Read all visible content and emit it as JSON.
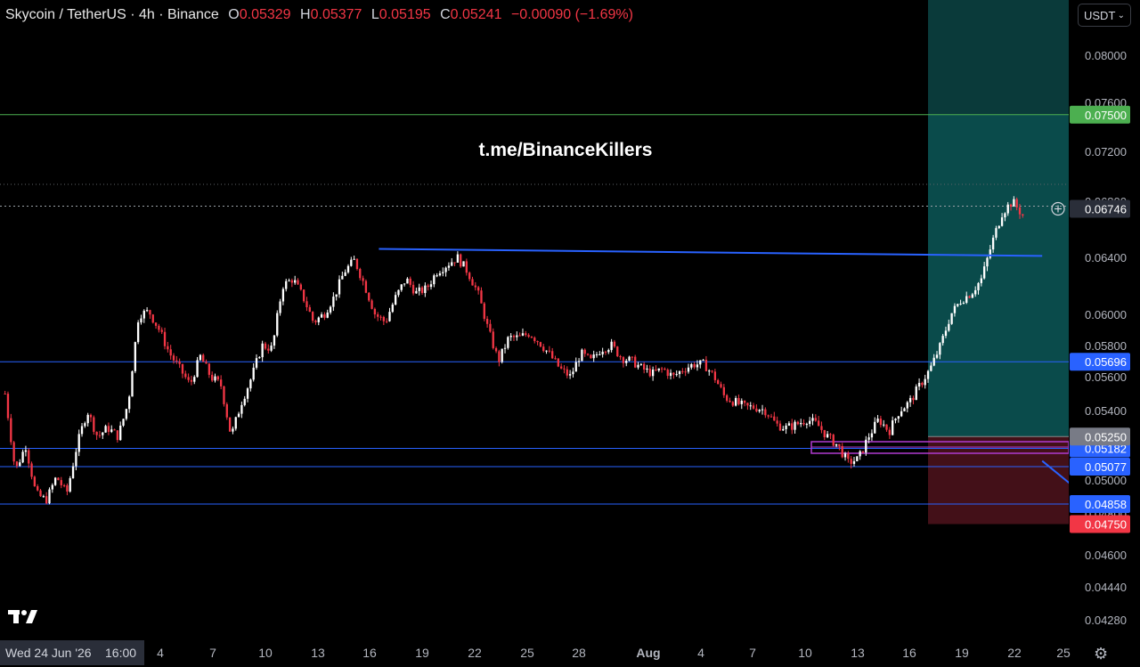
{
  "header": {
    "symbol": "Skycoin / TetherUS · 4h · Binance",
    "open_key": "O",
    "open": "0.05329",
    "high_key": "H",
    "high": "0.05377",
    "low_key": "L",
    "low": "0.05195",
    "close_key": "C",
    "close": "0.05241",
    "change": "−0.00090 (−1.69%)"
  },
  "currency_selector": {
    "value": "USDT"
  },
  "watermark": "t.me/BinanceKillers",
  "colors": {
    "up": "#ffffff",
    "down": "#f23645",
    "level_line": "#2962ff",
    "target_zone": "#0b5a5a",
    "stop_zone": "#5a1520",
    "target_label": "#4caf50",
    "stop_label": "#f23645",
    "blue_label": "#2962ff"
  },
  "chart_data": {
    "type": "candlestick",
    "y_axis": {
      "min": 0.0422,
      "max": 0.082,
      "ticks": [
        "0.08000",
        "0.07600",
        "0.07200",
        "0.06800",
        "0.06400",
        "0.06000",
        "0.05800",
        "0.05600",
        "0.05400",
        "0.05000",
        "0.04800",
        "0.04600",
        "0.04440",
        "0.04280"
      ]
    },
    "x_axis": {
      "ticks": [
        "4",
        "7",
        "10",
        "13",
        "16",
        "19",
        "22",
        "25",
        "28",
        "Aug",
        "4",
        "7",
        "10",
        "13",
        "16",
        "19",
        "22",
        "25"
      ],
      "cursor_label": "Wed 24 Jun '26",
      "cursor_time": "16:00"
    },
    "horizontal_levels": [
      {
        "price": 0.075,
        "label": "0.07500",
        "kind": "target"
      },
      {
        "price": 0.05696,
        "label": "0.05696",
        "kind": "level"
      },
      {
        "price": 0.05182,
        "label": "0.05182",
        "kind": "level"
      },
      {
        "price": 0.05077,
        "label": "0.05077",
        "kind": "level"
      },
      {
        "price": 0.04858,
        "label": "0.04858",
        "kind": "level"
      }
    ],
    "current_price": {
      "price": 0.06746,
      "label": "0.06746"
    },
    "position": {
      "entry": 0.0525,
      "entry_label": "0.05250",
      "target": 0.075,
      "stop": 0.0475,
      "stop_label": "0.04750"
    },
    "trendlines": [
      {
        "from_date": "16 Jul",
        "from_price": 0.0646,
        "to_date": "23 Aug",
        "to_price": 0.0641
      },
      {
        "from_date": "26 Jun",
        "from_price": 0.0486,
        "to_date": "23 Aug",
        "to_price": 0.0511
      }
    ],
    "ohlc_path": [
      [
        0,
        0.055
      ],
      [
        2,
        0.0505
      ],
      [
        4,
        0.052
      ],
      [
        6,
        0.0492
      ],
      [
        8,
        0.0488
      ],
      [
        10,
        0.0502
      ],
      [
        12,
        0.0492
      ],
      [
        14,
        0.052
      ],
      [
        16,
        0.054
      ],
      [
        18,
        0.0525
      ],
      [
        20,
        0.053
      ],
      [
        22,
        0.0525
      ],
      [
        24,
        0.0545
      ],
      [
        26,
        0.06
      ],
      [
        28,
        0.0602
      ],
      [
        30,
        0.059
      ],
      [
        32,
        0.0575
      ],
      [
        34,
        0.0565
      ],
      [
        36,
        0.0555
      ],
      [
        38,
        0.0573
      ],
      [
        40,
        0.056
      ],
      [
        42,
        0.0555
      ],
      [
        44,
        0.0525
      ],
      [
        46,
        0.0545
      ],
      [
        48,
        0.056
      ],
      [
        50,
        0.058
      ],
      [
        52,
        0.0578
      ],
      [
        54,
        0.062
      ],
      [
        56,
        0.0625
      ],
      [
        58,
        0.0612
      ],
      [
        60,
        0.0595
      ],
      [
        62,
        0.06
      ],
      [
        64,
        0.0612
      ],
      [
        66,
        0.063
      ],
      [
        68,
        0.0638
      ],
      [
        70,
        0.062
      ],
      [
        72,
        0.06
      ],
      [
        74,
        0.0595
      ],
      [
        76,
        0.0612
      ],
      [
        78,
        0.0625
      ],
      [
        80,
        0.0615
      ],
      [
        82,
        0.0618
      ],
      [
        84,
        0.063
      ],
      [
        86,
        0.0635
      ],
      [
        88,
        0.064
      ],
      [
        90,
        0.063
      ],
      [
        92,
        0.0615
      ],
      [
        94,
        0.059
      ],
      [
        96,
        0.057
      ],
      [
        98,
        0.0585
      ],
      [
        100,
        0.0585
      ],
      [
        102,
        0.0588
      ],
      [
        104,
        0.0582
      ],
      [
        106,
        0.0574
      ],
      [
        108,
        0.0565
      ],
      [
        110,
        0.056
      ],
      [
        112,
        0.0575
      ],
      [
        114,
        0.057
      ],
      [
        116,
        0.0578
      ],
      [
        118,
        0.058
      ],
      [
        120,
        0.0572
      ],
      [
        122,
        0.057
      ],
      [
        124,
        0.0565
      ],
      [
        126,
        0.0562
      ],
      [
        128,
        0.0565
      ],
      [
        130,
        0.056
      ],
      [
        132,
        0.0565
      ],
      [
        134,
        0.0568
      ],
      [
        136,
        0.0568
      ],
      [
        138,
        0.056
      ],
      [
        140,
        0.0548
      ],
      [
        142,
        0.0545
      ],
      [
        144,
        0.0542
      ],
      [
        146,
        0.0542
      ],
      [
        148,
        0.054
      ],
      [
        150,
        0.0532
      ],
      [
        152,
        0.053
      ],
      [
        154,
        0.0532
      ],
      [
        156,
        0.0535
      ],
      [
        158,
        0.0532
      ],
      [
        160,
        0.0525
      ],
      [
        162,
        0.052
      ],
      [
        164,
        0.051
      ],
      [
        166,
        0.0512
      ],
      [
        168,
        0.0525
      ],
      [
        170,
        0.0535
      ],
      [
        172,
        0.0528
      ],
      [
        174,
        0.054
      ],
      [
        176,
        0.0545
      ],
      [
        178,
        0.0555
      ],
      [
        180,
        0.0565
      ],
      [
        182,
        0.058
      ],
      [
        184,
        0.06
      ],
      [
        186,
        0.061
      ],
      [
        188,
        0.0615
      ],
      [
        190,
        0.0625
      ],
      [
        192,
        0.065
      ],
      [
        194,
        0.0672
      ],
      [
        196,
        0.068
      ],
      [
        198,
        0.067
      ]
    ]
  }
}
